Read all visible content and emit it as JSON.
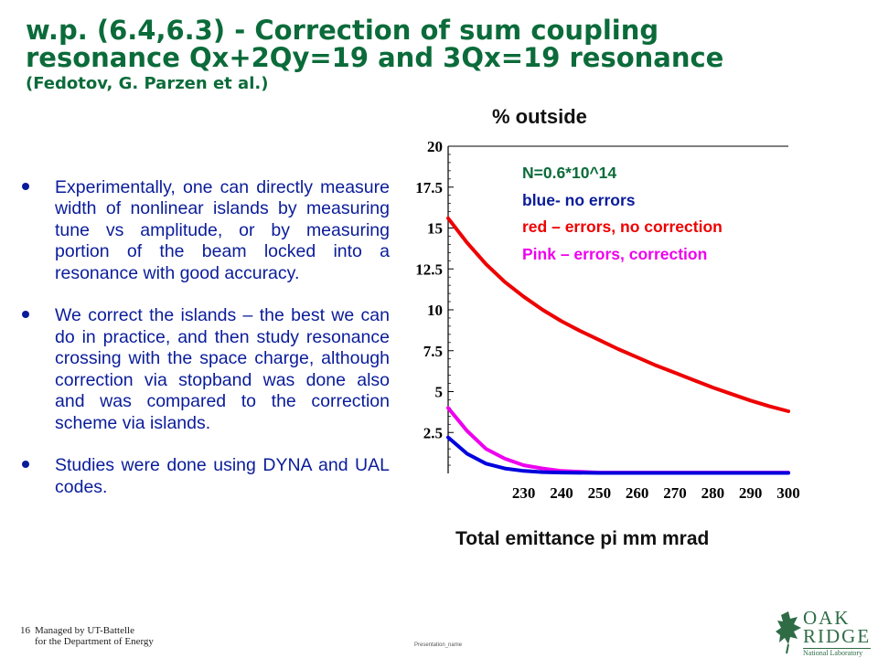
{
  "slide": {
    "title_line1": "w.p. (6.4,6.3) - Correction of sum coupling",
    "title_line2": "resonance Qx+2Qy=19 and 3Qx=19 resonance",
    "title_line3": "(Fedotov, G. Parzen et al.)",
    "bullets": [
      "Experimentally, one can directly measure width of nonlinear islands by measuring tune vs amplitude, or by measuring portion of the beam locked into a resonance with good accuracy.",
      "We correct the islands – the best we can do in practice, and then study resonance crossing with the space charge, although correction via stopband was done also and was compared to the correction scheme via islands.",
      "Studies were done using DYNA and UAL codes."
    ],
    "footer_page": "16",
    "footer_line1": "Managed by UT-Battelle",
    "footer_line2": "for the Department of Energy",
    "presentation_name": "Presentation_name",
    "logo": {
      "word1": "OAK",
      "word2": "RIDGE",
      "word3": "National Laboratory",
      "icon": "oak-leaf-icon"
    }
  },
  "chart_data": {
    "type": "line",
    "title": "% outside",
    "xlabel": "Total emittance pi mm mrad",
    "ylabel": "",
    "xlim": [
      210,
      300
    ],
    "ylim": [
      0,
      20
    ],
    "x_ticks": [
      "230",
      "240",
      "250",
      "260",
      "270",
      "280",
      "290",
      "300"
    ],
    "y_ticks": [
      "2.5",
      "5",
      "7.5",
      "10",
      "12.5",
      "15",
      "17.5",
      "20"
    ],
    "annotations": [
      "N=0.6*10^14",
      "blue- no errors",
      "red – errors, no correction",
      "Pink – errors, correction"
    ],
    "series": [
      {
        "color": "#ee0000",
        "x": [
          210,
          215,
          220,
          225,
          230,
          235,
          240,
          245,
          250,
          255,
          260,
          265,
          270,
          275,
          280,
          285,
          290,
          295,
          300
        ],
        "y": [
          15.6,
          14.1,
          12.8,
          11.7,
          10.8,
          10.0,
          9.3,
          8.7,
          8.15,
          7.6,
          7.1,
          6.6,
          6.15,
          5.7,
          5.25,
          4.85,
          4.45,
          4.1,
          3.8
        ]
      },
      {
        "color": "#ee00ee",
        "x": [
          210,
          215,
          220,
          225,
          230,
          235,
          240,
          245,
          250,
          260,
          270,
          280,
          290,
          300
        ],
        "y": [
          4.0,
          2.6,
          1.5,
          0.9,
          0.5,
          0.3,
          0.15,
          0.1,
          0.05,
          0.05,
          0.05,
          0.05,
          0.05,
          0.05
        ]
      },
      {
        "color": "#0000dd",
        "x": [
          210,
          215,
          220,
          225,
          230,
          235,
          240,
          250,
          260,
          270,
          280,
          290,
          300
        ],
        "y": [
          2.2,
          1.2,
          0.6,
          0.3,
          0.15,
          0.08,
          0.05,
          0.03,
          0.03,
          0.03,
          0.03,
          0.03,
          0.03
        ]
      }
    ],
    "annotation_colors": [
      "#0b6b3a",
      "#0a1c9a",
      "#ee0000",
      "#ee00ee"
    ]
  }
}
